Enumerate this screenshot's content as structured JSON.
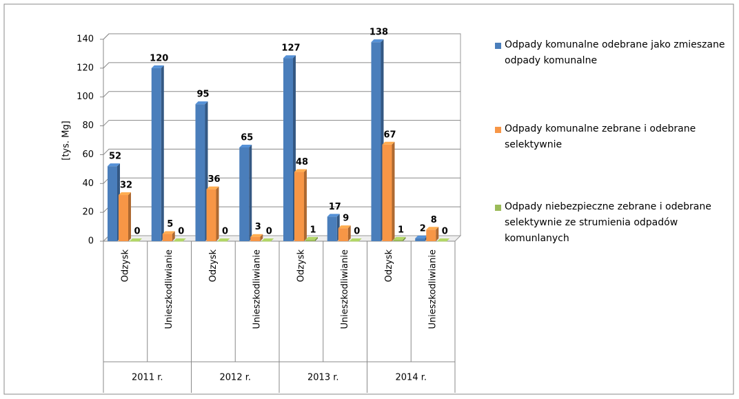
{
  "chart_data": {
    "type": "bar",
    "ylabel": "[tys. Mg]",
    "categories": [
      "Odzysk",
      "Unieszkodliwianie",
      "Odzysk",
      "Unieszkodliwianie",
      "Odzysk",
      "Unieszkodliwianie",
      "Odzysk",
      "Unieszkodliwianie"
    ],
    "groups": [
      "2011 r.",
      "2012 r.",
      "2013 r.",
      "2014 r."
    ],
    "series": [
      {
        "name": "Odpady komunalne odebrane jako zmieszane odpady komunalne",
        "color": "#4a7ebb",
        "values": [
          52,
          120,
          95,
          65,
          127,
          17,
          138,
          2
        ]
      },
      {
        "name": "Odpady komunalne zebrane i odebrane selektywnie",
        "color": "#f79646",
        "values": [
          32,
          5,
          36,
          3,
          48,
          9,
          67,
          8
        ]
      },
      {
        "name": "Odpady niebezpieczne zebrane i odebrane selektywnie ze strumienia odpadów komunlanych",
        "color": "#9bbb59",
        "values": [
          0,
          0,
          0,
          0,
          1,
          0,
          1,
          0
        ]
      }
    ],
    "ylim": [
      0,
      140
    ],
    "yticks": [
      0,
      20,
      40,
      60,
      80,
      100,
      120,
      140
    ],
    "grid": true,
    "legend": "right"
  }
}
